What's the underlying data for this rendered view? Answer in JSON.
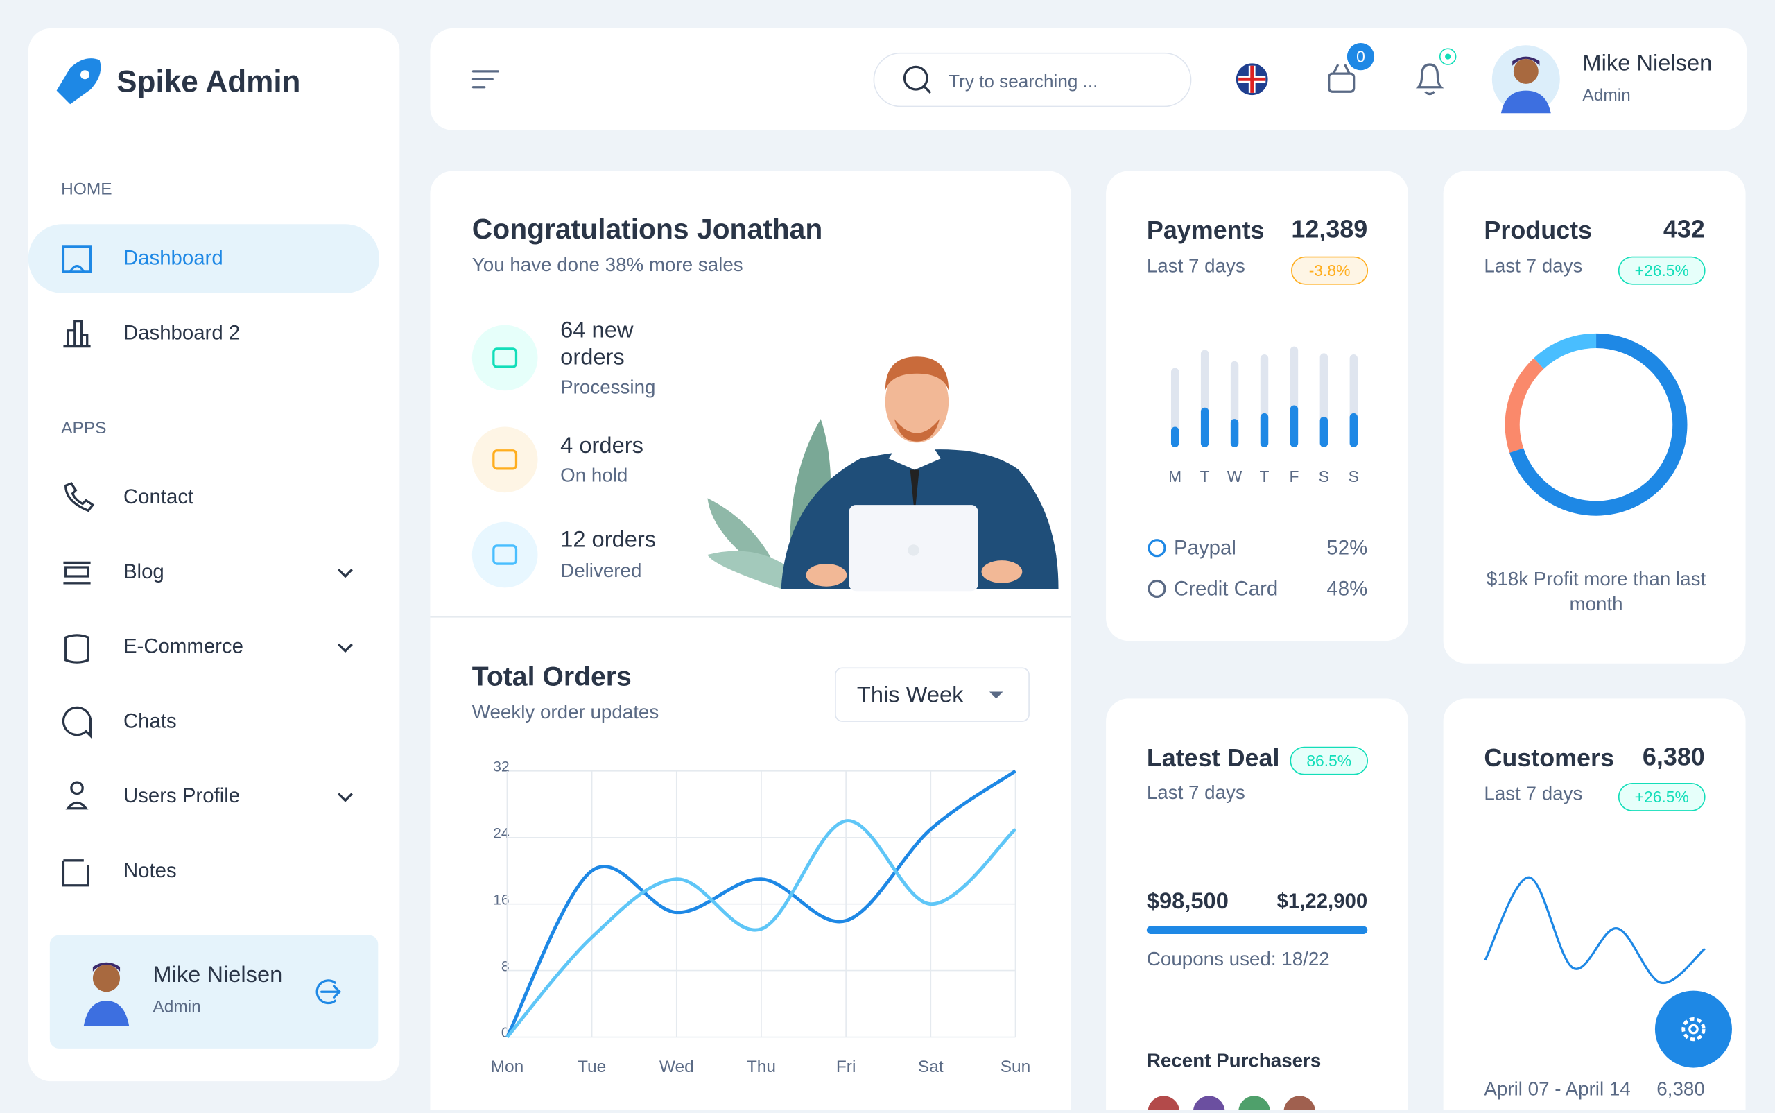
{
  "sidebar": {
    "brand": "Spike Admin",
    "sections": [
      {
        "heading": "HOME",
        "items": [
          {
            "label": "Dashboard",
            "expandable": false,
            "active": true
          },
          {
            "label": "Dashboard 2",
            "expandable": false,
            "active": false
          }
        ]
      },
      {
        "heading": "APPS",
        "items": [
          {
            "label": "Contact",
            "expandable": false,
            "active": false
          },
          {
            "label": "Blog",
            "expandable": true,
            "active": false
          },
          {
            "label": "E-Commerce",
            "expandable": true,
            "active": false
          },
          {
            "label": "Chats",
            "expandable": false,
            "active": false
          },
          {
            "label": "Users Profile",
            "expandable": true,
            "active": false
          },
          {
            "label": "Notes",
            "expandable": false,
            "active": false
          }
        ]
      }
    ],
    "user": {
      "name": "Mike Nielsen",
      "role": "Admin"
    }
  },
  "header": {
    "search_placeholder": "Try to searching ...",
    "cart_count": "0",
    "user": {
      "name": "Mike Nielsen",
      "role": "Admin"
    }
  },
  "welcome": {
    "title": "Congratulations Jonathan",
    "subtitle": "You have done 38% more sales",
    "stats": [
      {
        "title": "64 new orders",
        "subtitle": "Processing",
        "color": "#13deb9",
        "bg": "#e6fffa"
      },
      {
        "title": "4 orders",
        "subtitle": "On hold",
        "color": "#ffae1f",
        "bg": "#fef5e5"
      },
      {
        "title": "12 orders",
        "subtitle": "Delivered",
        "color": "#49beff",
        "bg": "#e8f7ff"
      }
    ]
  },
  "total_orders": {
    "title": "Total Orders",
    "subtitle": "Weekly order updates",
    "period": "This Week",
    "chart": {
      "type": "line",
      "categories": [
        "Mon",
        "Tue",
        "Wed",
        "Thu",
        "Fri",
        "Sat",
        "Sun"
      ],
      "ylim": [
        0,
        32
      ],
      "yticks": [
        0,
        8,
        16,
        24,
        32
      ],
      "grid": true,
      "series": [
        {
          "color": "#1e88e5",
          "values": [
            0,
            20,
            15,
            19,
            14,
            25,
            32
          ]
        },
        {
          "color": "#5fc6f7",
          "values": [
            0,
            12,
            19,
            13,
            26,
            16,
            25
          ]
        }
      ]
    }
  },
  "payments": {
    "title": "Payments",
    "value": "12,389",
    "period": "Last 7 days",
    "change": "-3.8%",
    "chart": {
      "type": "bar",
      "categories": [
        "M",
        "T",
        "W",
        "T",
        "F",
        "S",
        "S"
      ],
      "ylim": [
        0,
        100
      ],
      "color": "#1e88e5",
      "track_color": "#dfe5ef",
      "values": [
        18,
        35,
        25,
        30,
        37,
        27,
        30
      ],
      "track_values": [
        70,
        86,
        76,
        82,
        89,
        83,
        82
      ]
    },
    "legend": [
      {
        "name": "Paypal",
        "value": "52%",
        "color": "#1e88e5"
      },
      {
        "name": "Credit Card",
        "value": "48%",
        "color": "#5a6a85"
      }
    ]
  },
  "products": {
    "title": "Products",
    "value": "432",
    "period": "Last 7 days",
    "change": "+26.5%",
    "chart": {
      "type": "donut",
      "values": [
        70,
        18,
        12
      ],
      "colors": [
        "#1e88e5",
        "#fa896b",
        "#49beff"
      ]
    },
    "caption": "$18k Profit more than last month"
  },
  "latest_deal": {
    "title": "Latest Deal",
    "change": "86.5%",
    "period": "Last 7 days",
    "amount": "$98,500",
    "target": "$1,22,900",
    "coupons": "Coupons used: 18/22",
    "purchasers_title": "Recent Purchasers"
  },
  "customers": {
    "title": "Customers",
    "value": "6,380",
    "period": "Last 7 days",
    "change": "+26.5%",
    "chart": {
      "type": "line",
      "color": "#1e88e5",
      "ylim": [
        0,
        100
      ],
      "values": [
        22,
        95,
        15,
        50,
        2,
        32
      ]
    },
    "range": "April 07 - April 14",
    "range_value": "6,380"
  }
}
